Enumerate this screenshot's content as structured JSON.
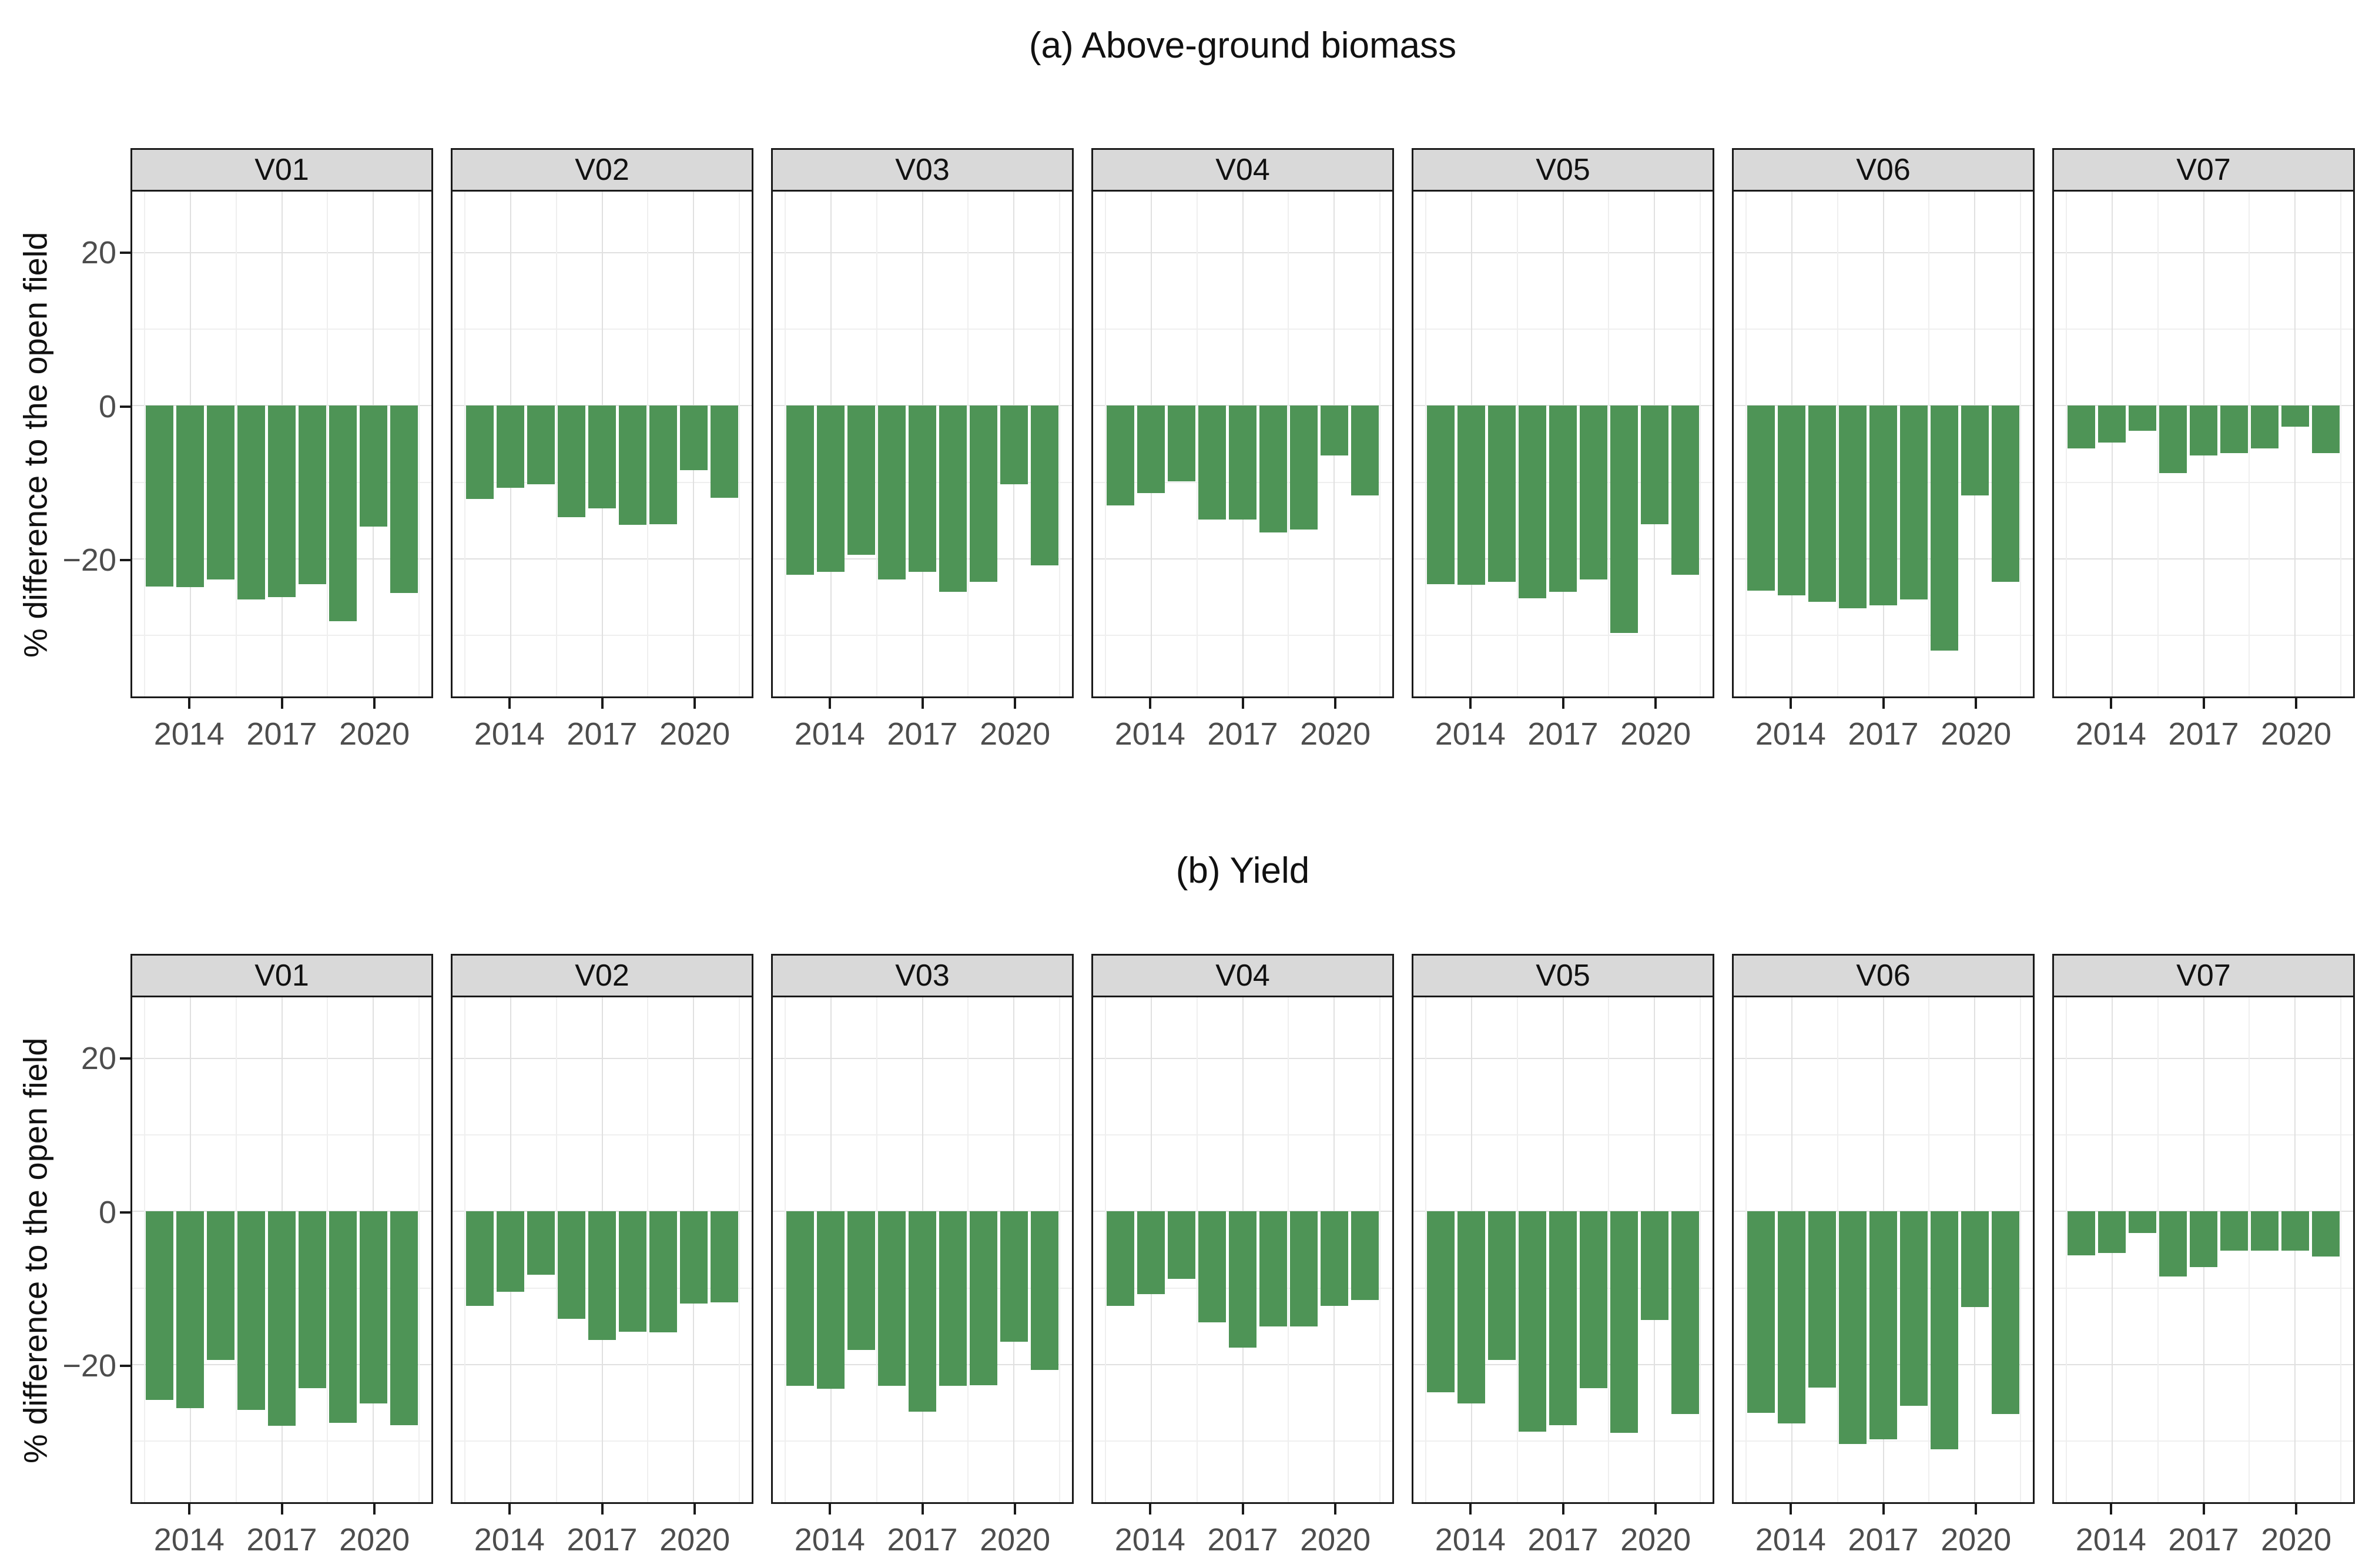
{
  "figure": {
    "y_axis_title": "% difference to the open field",
    "y_tick_labels": [
      "20",
      "0",
      "−20"
    ],
    "x_tick_labels": [
      "2014",
      "2017",
      "2020"
    ],
    "colors": {
      "bar": "#4e9456",
      "strip_bg": "#d9d9d9",
      "panel_border": "#1a1a1a",
      "grid_major": "#e0e0e0",
      "grid_minor": "#efefef",
      "tick_label": "#4d4d4d",
      "title_text": "#111111"
    }
  },
  "chart_data": [
    {
      "type": "bar",
      "title": "(a) Above-ground biomass",
      "ylabel": "% difference to the open field",
      "xlabel": "",
      "categories": [
        2013,
        2014,
        2015,
        2016,
        2017,
        2018,
        2019,
        2020,
        2021
      ],
      "x_ticks": [
        2014,
        2017,
        2020
      ],
      "y_ticks": [
        20,
        0,
        -20
      ],
      "grid_y": [
        20,
        10,
        0,
        -10,
        -20,
        -30
      ],
      "grid_x": [
        2012.5,
        2014,
        2015.5,
        2017,
        2018.5,
        2020,
        2021.5
      ],
      "xlim": [
        2012.1,
        2021.9
      ],
      "ylim": [
        -38,
        28
      ],
      "bar_width_years": 0.9,
      "legend": "none",
      "facets": [
        {
          "name": "V01",
          "values": [
            -23.6,
            -23.7,
            -22.7,
            -25.3,
            -25.0,
            -23.3,
            -28.2,
            -15.8,
            -24.5
          ]
        },
        {
          "name": "V02",
          "values": [
            -12.2,
            -10.7,
            -10.3,
            -14.6,
            -13.4,
            -15.6,
            -15.5,
            -8.4,
            -12.0
          ]
        },
        {
          "name": "V03",
          "values": [
            -22.1,
            -21.7,
            -19.5,
            -22.7,
            -21.7,
            -24.3,
            -23.0,
            -10.3,
            -20.9
          ]
        },
        {
          "name": "V04",
          "values": [
            -13.0,
            -11.4,
            -9.9,
            -14.9,
            -14.9,
            -16.6,
            -16.2,
            -6.5,
            -11.7
          ]
        },
        {
          "name": "V05",
          "values": [
            -23.3,
            -23.4,
            -23.0,
            -25.2,
            -24.3,
            -22.7,
            -29.7,
            -15.5,
            -22.1
          ]
        },
        {
          "name": "V06",
          "values": [
            -24.2,
            -24.8,
            -25.6,
            -26.5,
            -26.1,
            -25.3,
            -32.0,
            -11.7,
            -23.0
          ]
        },
        {
          "name": "V07",
          "values": [
            -5.6,
            -4.8,
            -3.3,
            -8.8,
            -6.5,
            -6.2,
            -5.6,
            -2.7,
            -6.2
          ]
        }
      ]
    },
    {
      "type": "bar",
      "title": "(b) Yield",
      "ylabel": "% difference to the open field",
      "xlabel": "",
      "categories": [
        2013,
        2014,
        2015,
        2016,
        2017,
        2018,
        2019,
        2020,
        2021
      ],
      "x_ticks": [
        2014,
        2017,
        2020
      ],
      "y_ticks": [
        20,
        0,
        -20
      ],
      "grid_y": [
        20,
        10,
        0,
        -10,
        -20,
        -30
      ],
      "grid_x": [
        2012.5,
        2014,
        2015.5,
        2017,
        2018.5,
        2020,
        2021.5
      ],
      "xlim": [
        2012.1,
        2021.9
      ],
      "ylim": [
        -38,
        28
      ],
      "bar_width_years": 0.9,
      "legend": "none",
      "facets": [
        {
          "name": "V01",
          "values": [
            -24.6,
            -25.7,
            -19.4,
            -25.9,
            -28.0,
            -23.1,
            -27.6,
            -25.1,
            -27.9
          ]
        },
        {
          "name": "V02",
          "values": [
            -12.3,
            -10.5,
            -8.3,
            -14.0,
            -16.8,
            -15.7,
            -15.8,
            -12.0,
            -11.9
          ]
        },
        {
          "name": "V03",
          "values": [
            -22.8,
            -23.2,
            -18.1,
            -22.8,
            -26.2,
            -22.8,
            -22.7,
            -17.0,
            -20.7
          ]
        },
        {
          "name": "V04",
          "values": [
            -12.3,
            -10.8,
            -8.8,
            -14.5,
            -17.8,
            -15.0,
            -15.0,
            -12.3,
            -11.6
          ]
        },
        {
          "name": "V05",
          "values": [
            -23.6,
            -25.1,
            -19.4,
            -28.8,
            -27.9,
            -23.1,
            -28.9,
            -14.2,
            -26.5
          ]
        },
        {
          "name": "V06",
          "values": [
            -26.3,
            -27.7,
            -23.0,
            -30.4,
            -29.8,
            -25.4,
            -31.1,
            -12.5,
            -26.5
          ]
        },
        {
          "name": "V07",
          "values": [
            -5.7,
            -5.4,
            -2.8,
            -8.5,
            -7.3,
            -5.1,
            -5.1,
            -5.1,
            -5.9
          ]
        }
      ]
    }
  ]
}
